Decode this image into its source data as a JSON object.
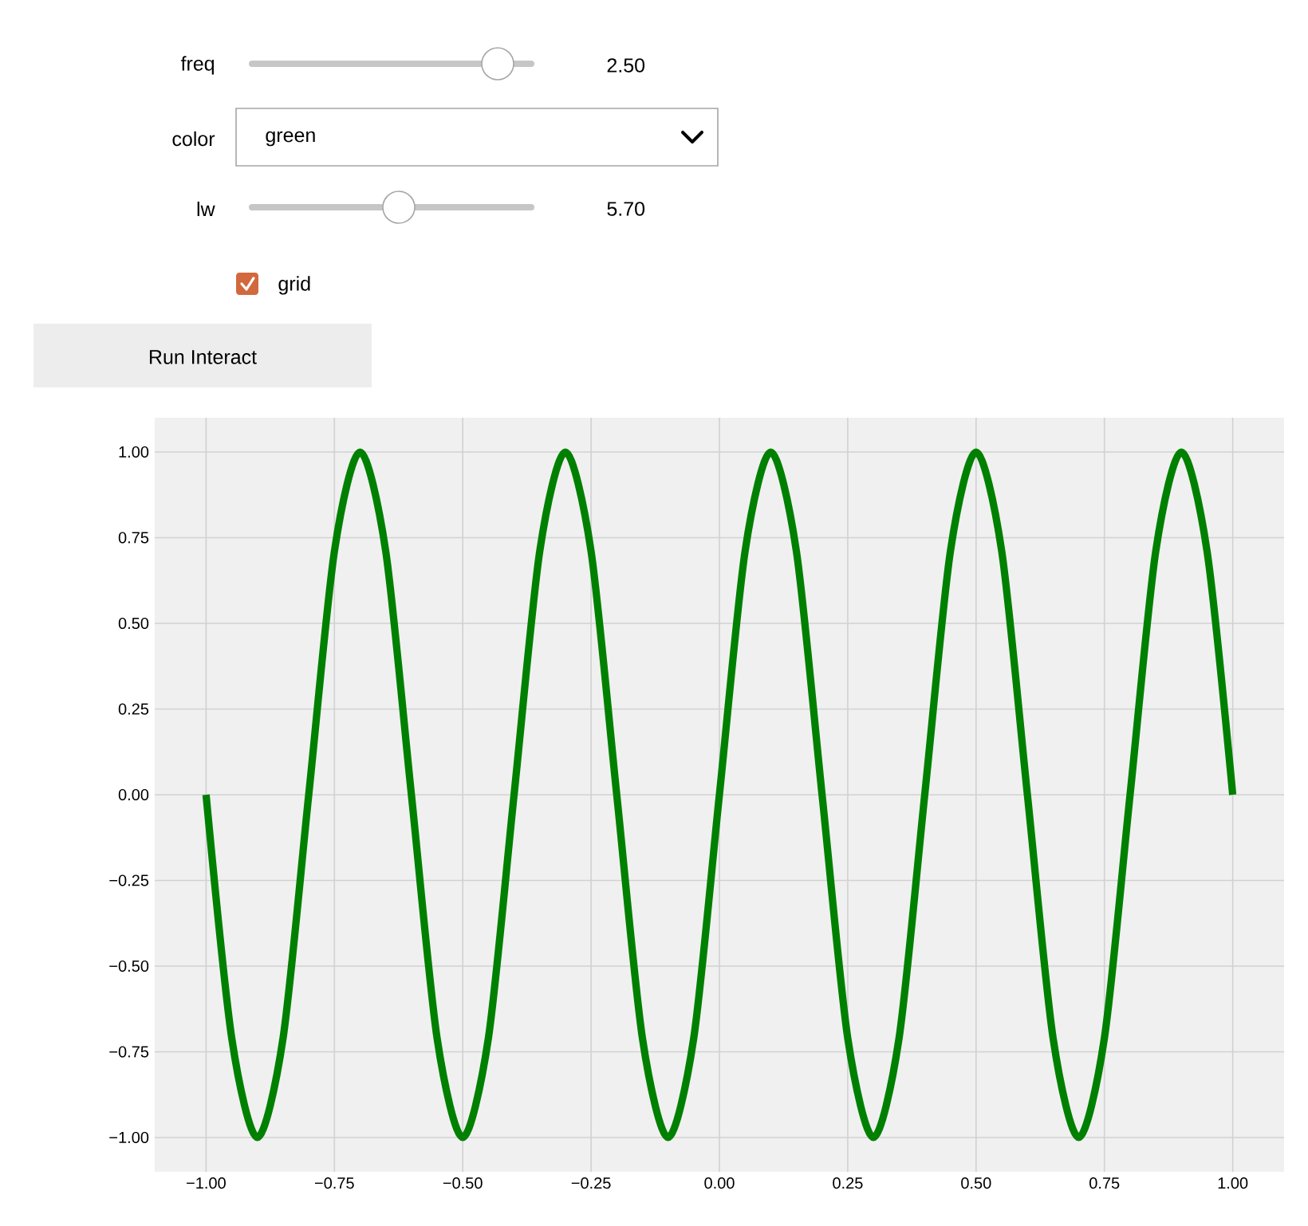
{
  "chart_data": {
    "type": "line",
    "annotations": [
      "freq",
      "2.50",
      "color",
      "green",
      "lw",
      "5.70",
      "grid",
      "Run Interact"
    ],
    "x": [
      -1,
      -0.95,
      -0.9,
      -0.85,
      -0.8,
      -0.75,
      -0.7,
      -0.65,
      -0.6,
      -0.55,
      -0.5,
      -0.45,
      -0.4,
      -0.35,
      -0.3,
      -0.25,
      -0.2,
      -0.15,
      -0.1,
      -0.05,
      0,
      0.05,
      0.1,
      0.15,
      0.2,
      0.25,
      0.3,
      0.35,
      0.4,
      0.45,
      0.5,
      0.55,
      0.6,
      0.65,
      0.7,
      0.75,
      0.8,
      0.85,
      0.9,
      0.95,
      1
    ],
    "series": [
      {
        "color": "#008000",
        "values": [
          0,
          -0.71,
          -1,
          -0.71,
          0,
          0.71,
          1,
          0.71,
          0,
          -0.71,
          -1,
          -0.71,
          0,
          0.71,
          1,
          0.71,
          0,
          -0.71,
          -1,
          -0.71,
          0,
          0.71,
          1,
          0.71,
          0,
          -0.71,
          -1,
          -0.71,
          0,
          0.71,
          1,
          0.71,
          0,
          -0.71,
          -1,
          -0.71,
          0,
          0.71,
          1,
          0.71,
          0
        ]
      }
    ],
    "xlim": [
      -1.1,
      1.1
    ],
    "ylim": [
      -1.1,
      1.1
    ],
    "xticks": [
      {
        "value": -1,
        "label": "−1.00"
      },
      {
        "value": -0.75,
        "label": "−0.75"
      },
      {
        "value": -0.5,
        "label": "−0.50"
      },
      {
        "value": -0.25,
        "label": "−0.25"
      },
      {
        "value": 0,
        "label": "0.00"
      },
      {
        "value": 0.25,
        "label": "0.25"
      },
      {
        "value": 0.5,
        "label": "0.50"
      },
      {
        "value": 0.75,
        "label": "0.75"
      },
      {
        "value": 1,
        "label": "1.00"
      }
    ],
    "yticks": [
      {
        "value": -1,
        "label": "−1.00"
      },
      {
        "value": -0.75,
        "label": "−0.75"
      },
      {
        "value": -0.5,
        "label": "−0.50"
      },
      {
        "value": -0.25,
        "label": "−0.25"
      },
      {
        "value": 0,
        "label": "0.00"
      },
      {
        "value": 0.25,
        "label": "0.25"
      },
      {
        "value": 0.5,
        "label": "0.50"
      },
      {
        "value": 0.75,
        "label": "0.75"
      },
      {
        "value": 1,
        "label": "1.00"
      }
    ],
    "grid": true,
    "marker": "none",
    "line_style": "solid"
  }
}
